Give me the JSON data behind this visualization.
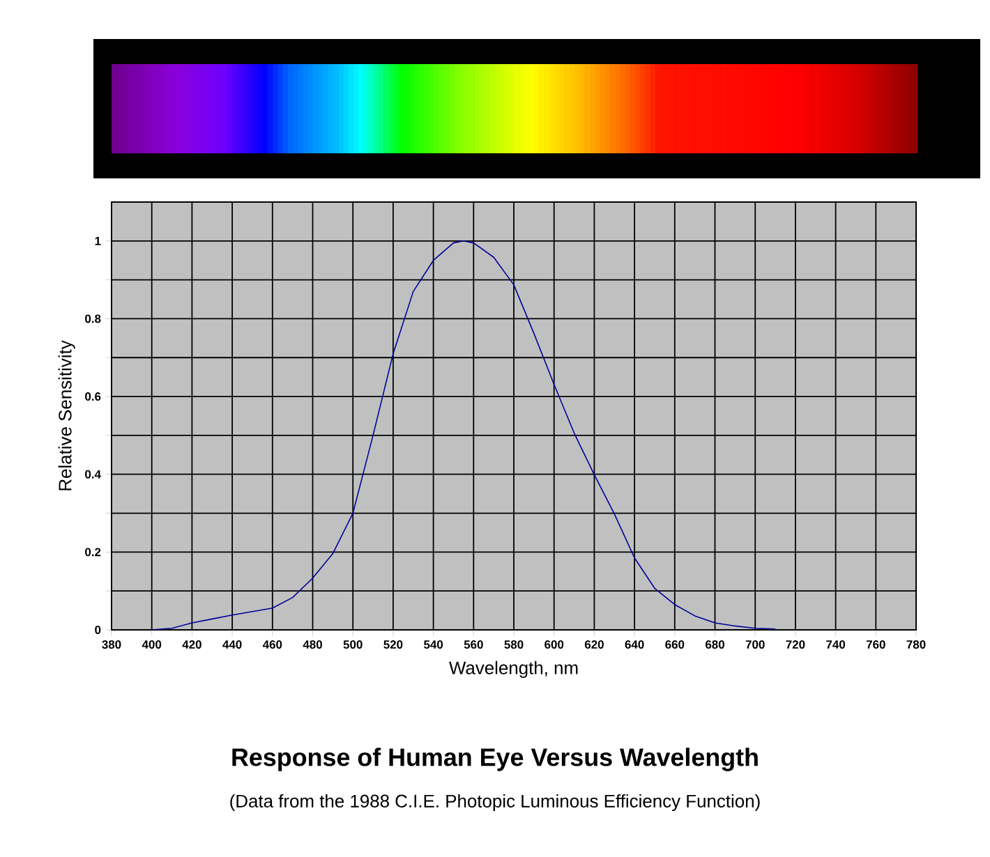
{
  "chart_data": {
    "type": "line",
    "title": "Response of Human Eye Versus Wavelength",
    "subtitle": "(Data from the 1988 C.I.E. Photopic Luminous Efficiency Function)",
    "xlabel": "Wavelength, nm",
    "ylabel": "Relative Sensitivity",
    "series": [
      {
        "color": "#000099",
        "x": [
          400,
          410,
          420,
          430,
          440,
          450,
          460,
          470,
          480,
          490,
          500,
          510,
          520,
          530,
          540,
          550,
          555,
          560,
          570,
          580,
          590,
          600,
          610,
          620,
          630,
          640,
          650,
          660,
          670,
          680,
          690,
          700,
          710
        ],
        "values": [
          0,
          0.004,
          0.018,
          0.028,
          0.038,
          0.047,
          0.056,
          0.083,
          0.133,
          0.196,
          0.3,
          0.5,
          0.71,
          0.87,
          0.95,
          0.995,
          1.0,
          0.995,
          0.958,
          0.887,
          0.762,
          0.631,
          0.506,
          0.399,
          0.298,
          0.185,
          0.107,
          0.065,
          0.036,
          0.018,
          0.01,
          0.004,
          0.002
        ]
      }
    ],
    "xlim": [
      380,
      780
    ],
    "xticks": [
      380,
      400,
      420,
      440,
      460,
      480,
      500,
      520,
      540,
      560,
      580,
      600,
      620,
      640,
      660,
      680,
      700,
      720,
      740,
      760,
      780
    ],
    "ylim": [
      0,
      1.1
    ],
    "yticks": [
      0,
      {
        "value": 0.1,
        "label": null
      },
      0.2,
      {
        "value": 0.3,
        "label": null
      },
      0.4,
      {
        "value": 0.5,
        "label": null
      },
      0.6,
      {
        "value": 0.7,
        "label": null
      },
      0.8,
      {
        "value": 0.9,
        "label": null
      },
      1
    ],
    "grid": true,
    "marker": "none",
    "line_style": "solid"
  }
}
